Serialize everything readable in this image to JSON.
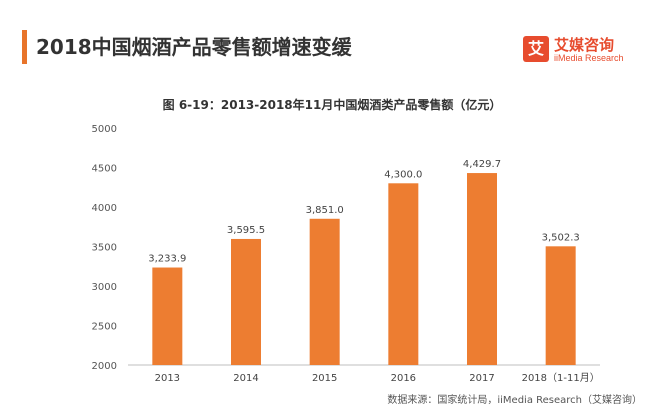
{
  "header": {
    "headline": "2018中国烟酒产品零售额增速变缓"
  },
  "logo": {
    "mark": "艾",
    "name_cn": "艾媒咨询",
    "name_en": "iiMedia Research"
  },
  "chart_data": {
    "type": "bar",
    "title": "图 6-19：2013-2018年11月中国烟酒类产品零售额（亿元）",
    "categories": [
      "2013",
      "2014",
      "2015",
      "2016",
      "2017",
      "2018（1-11月）"
    ],
    "values": [
      3233.9,
      3595.5,
      3851.0,
      4300.0,
      4429.7,
      3502.3
    ],
    "value_labels": [
      "3,233.9",
      "3,595.5",
      "3,851.0",
      "4,300.0",
      "4,429.7",
      "3,502.3"
    ],
    "y_ticks": [
      "2000",
      "2500",
      "3000",
      "3500",
      "4000",
      "4500",
      "5000"
    ],
    "ylim": [
      2000,
      5000
    ],
    "bar_color": "#ed7d31",
    "grid": false,
    "legend": "none"
  },
  "footer": {
    "source": "数据来源：国家统计局，iiMedia Research（艾媒咨询）"
  },
  "colors": {
    "accent": "#e8742a",
    "brand": "#e74c2e"
  }
}
